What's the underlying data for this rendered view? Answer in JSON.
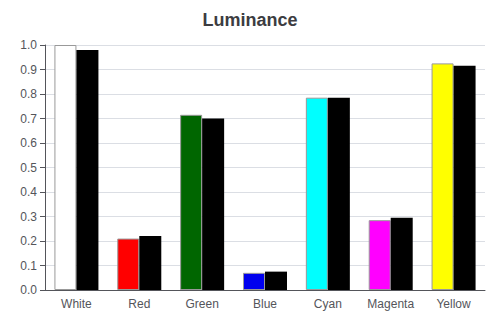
{
  "chart_data": {
    "type": "bar",
    "title": "Luminance",
    "categories": [
      "White",
      "Red",
      "Green",
      "Blue",
      "Cyan",
      "Magenta",
      "Yellow"
    ],
    "series": [
      {
        "colors": [
          "#ffffff",
          "#ff0000",
          "#006600",
          "#0000ee",
          "#00ffff",
          "#ff00ff",
          "#ffff00"
        ],
        "values": [
          1.0,
          0.21,
          0.715,
          0.07,
          0.785,
          0.285,
          0.925
        ]
      },
      {
        "color": "#000000",
        "values": [
          0.98,
          0.22,
          0.7,
          0.075,
          0.785,
          0.295,
          0.915
        ]
      }
    ],
    "ylim": [
      0.0,
      1.0
    ],
    "yticks": [
      {
        "value": 0.0,
        "label": "0.0"
      },
      0.1,
      0.2,
      0.3,
      0.4,
      0.5,
      0.6,
      0.7,
      0.8,
      0.9,
      {
        "value": 1.0,
        "label": "1.0"
      }
    ],
    "grid": true
  }
}
